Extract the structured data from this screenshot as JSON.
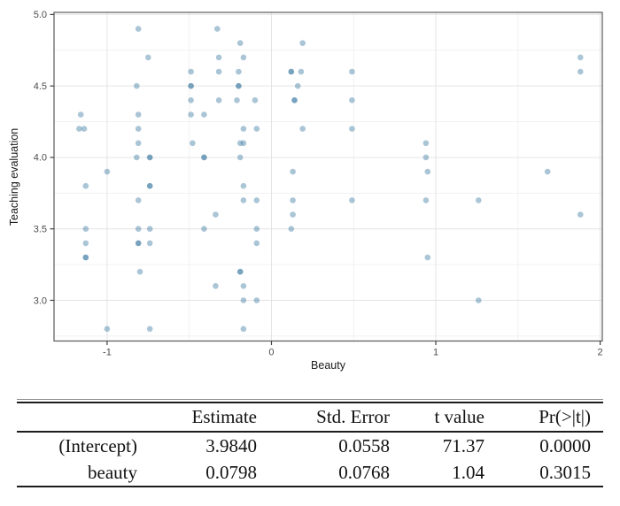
{
  "chart": {
    "x_axis_title": "Beauty",
    "y_axis_title": "Teaching evaluation",
    "colors": {
      "point": "#35759e",
      "panel_border": "#595959",
      "grid_major": "#e4e4e4",
      "grid_minor": "#f1f1f1",
      "tick_mark": "#404040",
      "tick_label": "#4d4d4d"
    }
  },
  "chart_data": {
    "type": "scatter",
    "title": "",
    "xlabel": "Beauty",
    "ylabel": "Teaching evaluation",
    "xlim": [
      -1.323,
      2.013
    ],
    "ylim": [
      2.715,
      5.015
    ],
    "x_ticks": [
      -1,
      0,
      1,
      2
    ],
    "x_tick_labels": [
      "-1",
      "0",
      "1",
      "2"
    ],
    "x_minor_ticks": [
      -0.5,
      0.5,
      1.5
    ],
    "y_ticks": [
      3.0,
      3.5,
      4.0,
      4.5,
      5.0
    ],
    "y_tick_labels": [
      "3.0",
      "3.5",
      "4.0",
      "4.5",
      "5.0"
    ],
    "y_minor_ticks": [
      2.75,
      3.25,
      3.75,
      4.25,
      4.75
    ],
    "grid": true,
    "legend": "none",
    "point_opacity": 0.42,
    "points": [
      [
        -0.81,
        4.9
      ],
      [
        -0.33,
        4.9
      ],
      [
        -0.19,
        4.8
      ],
      [
        0.19,
        4.8
      ],
      [
        -0.75,
        4.7
      ],
      [
        -0.32,
        4.7
      ],
      [
        -0.17,
        4.7
      ],
      [
        1.88,
        4.7
      ],
      [
        -0.49,
        4.6
      ],
      [
        -0.32,
        4.6
      ],
      [
        -0.2,
        4.6
      ],
      [
        0.12,
        4.6
      ],
      [
        0.12,
        4.6
      ],
      [
        0.18,
        4.6
      ],
      [
        0.49,
        4.6
      ],
      [
        1.88,
        4.6
      ],
      [
        -0.82,
        4.5
      ],
      [
        -0.49,
        4.5
      ],
      [
        -0.49,
        4.5
      ],
      [
        -0.2,
        4.5
      ],
      [
        -0.2,
        4.5
      ],
      [
        0.16,
        4.5
      ],
      [
        -0.49,
        4.4
      ],
      [
        -0.32,
        4.4
      ],
      [
        -0.21,
        4.4
      ],
      [
        -0.1,
        4.4
      ],
      [
        0.14,
        4.4
      ],
      [
        0.14,
        4.4
      ],
      [
        0.49,
        4.4
      ],
      [
        -1.16,
        4.3
      ],
      [
        -0.81,
        4.3
      ],
      [
        -0.49,
        4.3
      ],
      [
        -0.41,
        4.3
      ],
      [
        -1.17,
        4.2
      ],
      [
        -1.14,
        4.2
      ],
      [
        -0.81,
        4.2
      ],
      [
        -0.17,
        4.2
      ],
      [
        -0.09,
        4.2
      ],
      [
        0.19,
        4.2
      ],
      [
        0.49,
        4.2
      ],
      [
        -0.81,
        4.1
      ],
      [
        -0.48,
        4.1
      ],
      [
        -0.19,
        4.1
      ],
      [
        -0.17,
        4.1
      ],
      [
        0.94,
        4.1
      ],
      [
        -0.82,
        4.0
      ],
      [
        -0.74,
        4.0
      ],
      [
        -0.74,
        4.0
      ],
      [
        -0.41,
        4.0
      ],
      [
        -0.41,
        4.0
      ],
      [
        -0.19,
        4.0
      ],
      [
        0.94,
        4.0
      ],
      [
        -1.0,
        3.9
      ],
      [
        0.13,
        3.9
      ],
      [
        0.95,
        3.9
      ],
      [
        1.68,
        3.9
      ],
      [
        -1.13,
        3.8
      ],
      [
        -0.74,
        3.8
      ],
      [
        -0.74,
        3.8
      ],
      [
        -0.17,
        3.8
      ],
      [
        -0.81,
        3.7
      ],
      [
        -0.17,
        3.7
      ],
      [
        -0.09,
        3.7
      ],
      [
        0.13,
        3.7
      ],
      [
        0.49,
        3.7
      ],
      [
        0.94,
        3.7
      ],
      [
        1.26,
        3.7
      ],
      [
        -0.34,
        3.6
      ],
      [
        0.13,
        3.6
      ],
      [
        1.88,
        3.6
      ],
      [
        -1.13,
        3.5
      ],
      [
        -0.81,
        3.5
      ],
      [
        -0.74,
        3.5
      ],
      [
        -0.41,
        3.5
      ],
      [
        -0.09,
        3.5
      ],
      [
        0.12,
        3.5
      ],
      [
        -1.13,
        3.4
      ],
      [
        -0.81,
        3.4
      ],
      [
        -0.81,
        3.4
      ],
      [
        -0.74,
        3.4
      ],
      [
        -0.09,
        3.4
      ],
      [
        -1.13,
        3.3
      ],
      [
        -1.13,
        3.3
      ],
      [
        0.95,
        3.3
      ],
      [
        -0.8,
        3.2
      ],
      [
        -0.19,
        3.2
      ],
      [
        -0.19,
        3.2
      ],
      [
        -0.34,
        3.1
      ],
      [
        -0.17,
        3.1
      ],
      [
        -0.17,
        3.0
      ],
      [
        -0.09,
        3.0
      ],
      [
        1.26,
        3.0
      ],
      [
        -1.0,
        2.8
      ],
      [
        -0.74,
        2.8
      ],
      [
        -0.17,
        2.8
      ]
    ]
  },
  "table": {
    "headers": [
      "",
      "Estimate",
      "Std. Error",
      "t value",
      "Pr(>|t|)"
    ],
    "rows": [
      {
        "label": "(Intercept)",
        "estimate": "3.9840",
        "std_error": "0.0558",
        "t_value": "71.37",
        "p_value": "0.0000"
      },
      {
        "label": "beauty",
        "estimate": "0.0798",
        "std_error": "0.0768",
        "t_value": "1.04",
        "p_value": "0.3015"
      }
    ]
  }
}
